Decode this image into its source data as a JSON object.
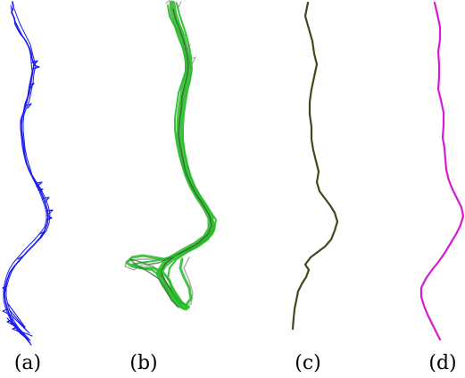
{
  "panels": [
    {
      "caption": "(a)",
      "color": "#1a1aee"
    },
    {
      "caption": "(b)",
      "color": "#22bb22",
      "outline_color": "#888888",
      "dark_color": "#3a6b3a"
    },
    {
      "caption": "(c)",
      "color": "#3f4a1c"
    },
    {
      "caption": "(d)",
      "color": "#d51bd5"
    }
  ]
}
